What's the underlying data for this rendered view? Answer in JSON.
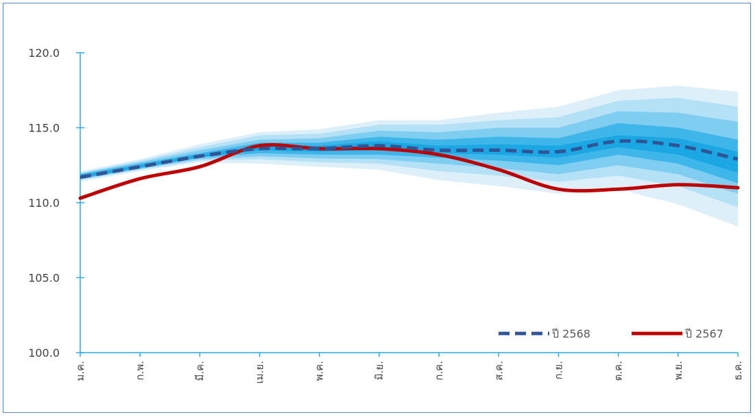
{
  "chart_data": {
    "type": "line",
    "categories": [
      "ม.ค.",
      "ก.พ.",
      "มี.ค.",
      "เม.ย.",
      "พ.ค.",
      "มิ.ย.",
      "ก.ค.",
      "ส.ค.",
      "ก.ย.",
      "ต.ค.",
      "พ.ย.",
      "ธ.ค."
    ],
    "ylim": [
      100.0,
      120.0
    ],
    "yticks": [
      "100.0",
      "105.0",
      "110.0",
      "115.0",
      "120.0"
    ],
    "grid": false,
    "legend_position": "bottom-right",
    "series": [
      {
        "name": "ปี 2568",
        "style": "dashed",
        "color": "#2f5597",
        "values": [
          111.7,
          112.4,
          113.1,
          113.6,
          113.6,
          113.8,
          113.5,
          113.5,
          113.4,
          114.1,
          113.8,
          112.9
        ]
      },
      {
        "name": "ปี 2567",
        "style": "solid",
        "color": "#c00000",
        "values": [
          110.3,
          111.6,
          112.4,
          113.8,
          113.6,
          113.6,
          113.2,
          112.2,
          110.9,
          110.9,
          111.2,
          111.0
        ]
      }
    ],
    "fan_bands": [
      {
        "color": "#ddf0fa",
        "lower": [
          111.4,
          112.1,
          112.7,
          112.6,
          112.4,
          112.2,
          111.5,
          111.1,
          110.6,
          110.9,
          109.9,
          108.4
        ],
        "upper": [
          112.1,
          112.9,
          113.9,
          114.7,
          114.9,
          115.5,
          115.5,
          116.0,
          116.4,
          117.5,
          117.8,
          117.4
        ]
      },
      {
        "color": "#b5e1f6",
        "lower": [
          111.5,
          112.2,
          112.8,
          112.9,
          112.7,
          112.6,
          112.1,
          111.8,
          111.4,
          111.8,
          111.1,
          109.7
        ],
        "upper": [
          112.0,
          112.8,
          113.7,
          114.5,
          114.6,
          115.2,
          115.2,
          115.5,
          115.7,
          116.8,
          117.0,
          116.4
        ]
      },
      {
        "color": "#7fcdf1",
        "lower": [
          111.55,
          112.25,
          112.9,
          113.1,
          112.95,
          112.9,
          112.6,
          112.3,
          111.9,
          112.5,
          111.9,
          110.6
        ],
        "upper": [
          111.95,
          112.7,
          113.5,
          114.2,
          114.3,
          114.8,
          114.7,
          115.0,
          115.0,
          116.1,
          116.0,
          115.4
        ]
      },
      {
        "color": "#3fb6ea",
        "lower": [
          111.6,
          112.3,
          113.0,
          113.3,
          113.2,
          113.2,
          113.0,
          112.8,
          112.5,
          113.2,
          112.6,
          111.3
        ],
        "upper": [
          111.9,
          112.6,
          113.3,
          114.0,
          114.0,
          114.4,
          114.2,
          114.4,
          114.3,
          115.3,
          115.0,
          114.2
        ]
      },
      {
        "color": "#1ba7e3",
        "lower": [
          111.65,
          112.35,
          113.05,
          113.5,
          113.4,
          113.5,
          113.3,
          113.2,
          113.0,
          113.7,
          113.2,
          112.0
        ],
        "upper": [
          111.8,
          112.5,
          113.2,
          113.8,
          113.8,
          114.1,
          113.8,
          113.9,
          113.8,
          114.5,
          114.3,
          113.4
        ]
      }
    ]
  }
}
